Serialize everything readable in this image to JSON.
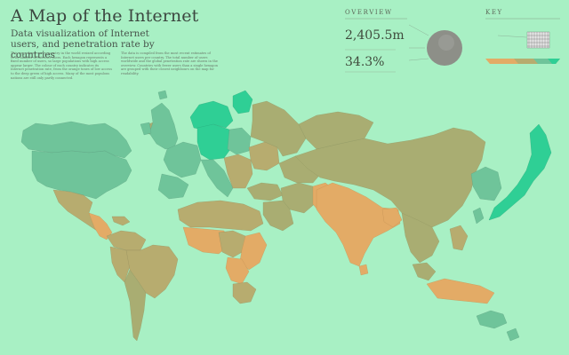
{
  "header": {
    "title": "A Map of the Internet",
    "subtitle": "Data visualization of Internet users, and penetration rate by countries",
    "intro_col1": "This map shows every country in the world resized according to its number of Internet users. Each hexagon represents a fixed number of users, so large populations with high access appear larger. The colour of each country indicates its Internet penetration rate, from the orange tones of low access to the deep green of high access. Many of the most populous nations are still only partly connected.",
    "intro_col2": "The data is compiled from the most recent estimates of Internet users per country. The total number of users worldwide and the global penetration rate are shown in the overview. Countries with fewer users than a single hexagon are grouped with their closest neighbours on the map for readability."
  },
  "overview": {
    "heading": "OVERVIEW",
    "total_users": "2,405.5m",
    "penetration": "34.3%"
  },
  "key": {
    "heading": "KEY"
  },
  "map": {
    "colors": {
      "bg": "#a8f0c4",
      "green": "#6fc49a",
      "teal": "#2fcf95",
      "olive": "#a9ad72",
      "khaki": "#b7ac6f",
      "orange": "#e3ab66"
    }
  }
}
